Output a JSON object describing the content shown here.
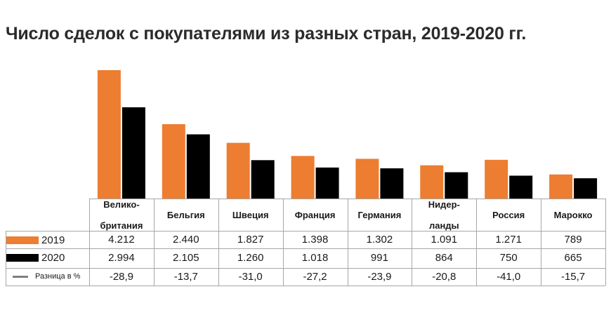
{
  "title": "Число сделок с покупателями из разных стран, 2019-2020 гг.",
  "colors": {
    "series_2019": "#ED7D31",
    "series_2020": "#000000",
    "diff_line": "#7f7f7f",
    "grid": "#a6a6a6"
  },
  "legend": {
    "s2019": "2019",
    "s2020": "2020",
    "diff": "Разница в %"
  },
  "chart_data": {
    "type": "bar",
    "title": "Число сделок с покупателями из разных стран, 2019-2020 гг.",
    "categories": [
      "Велико-британия",
      "Бельгия",
      "Швеция",
      "Франция",
      "Германия",
      "Нидер-ланды",
      "Россия",
      "Марокко"
    ],
    "category_lines": [
      [
        "Велико-",
        "британия"
      ],
      [
        "Бельгия"
      ],
      [
        "Швеция"
      ],
      [
        "Франция"
      ],
      [
        "Германия"
      ],
      [
        "Нидер-",
        "ланды"
      ],
      [
        "Россия"
      ],
      [
        "Марокко"
      ]
    ],
    "series": [
      {
        "name": "2019",
        "values": [
          4212,
          2440,
          1827,
          1398,
          1302,
          1091,
          1271,
          789
        ]
      },
      {
        "name": "2020",
        "values": [
          2994,
          2105,
          1260,
          1018,
          991,
          864,
          750,
          665
        ]
      }
    ],
    "table": {
      "s2019": [
        "4.212",
        "2.440",
        "1.827",
        "1.398",
        "1.302",
        "1.091",
        "1.271",
        "789"
      ],
      "s2020": [
        "2.994",
        "2.105",
        "1.260",
        "1.018",
        "991",
        "864",
        "750",
        "665"
      ],
      "diff": [
        "-28,9",
        "-13,7",
        "-31,0",
        "-27,2",
        "-23,9",
        "-20,8",
        "-41,0",
        "-15,7"
      ]
    },
    "ylim": [
      0,
      4212
    ],
    "legend_position": "table-left",
    "grid": false
  }
}
